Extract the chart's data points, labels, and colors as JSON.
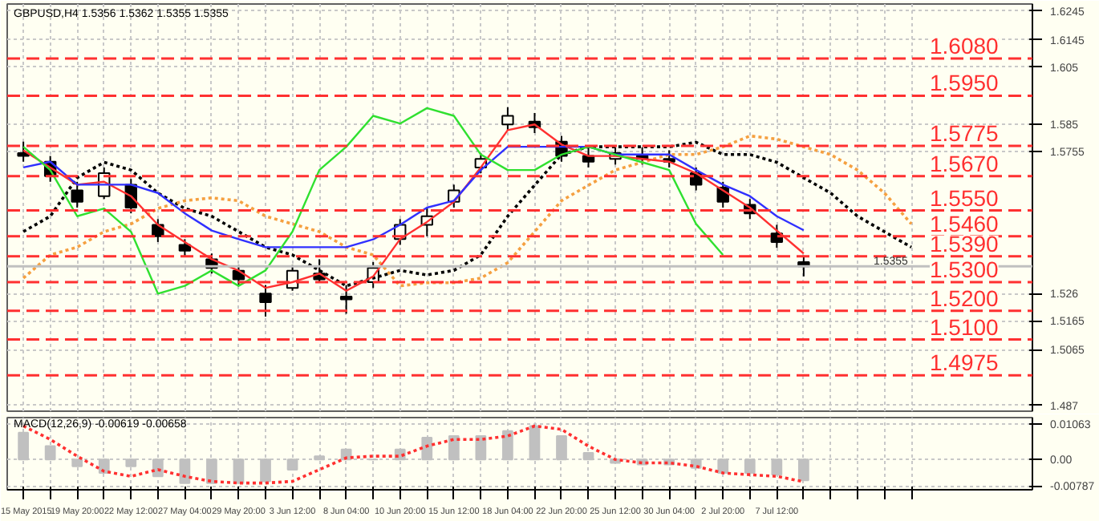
{
  "chart_data": [
    {
      "type": "candlestick",
      "title": "GBPUSD,H4  1.5356 1.5362 1.5355 1.5355",
      "color": "#000000",
      "categories": [
        null,
        null,
        null,
        null,
        null,
        null,
        null,
        null,
        null,
        null,
        null,
        null,
        null,
        null,
        null,
        null,
        null,
        null,
        null,
        null,
        null,
        null,
        null,
        null,
        null,
        null,
        null,
        null,
        null,
        null,
        null,
        null,
        null,
        null
      ],
      "ohlc": [
        [
          1.575,
          1.579,
          1.572,
          1.574
        ],
        [
          1.572,
          1.574,
          1.565,
          1.567
        ],
        [
          1.562,
          1.565,
          1.556,
          1.558
        ],
        [
          1.56,
          1.57,
          1.559,
          1.568
        ],
        [
          1.564,
          1.566,
          1.554,
          1.556
        ],
        [
          1.55,
          1.552,
          1.544,
          1.546
        ],
        [
          1.543,
          1.545,
          1.539,
          1.541
        ],
        [
          1.538,
          1.54,
          1.533,
          1.535
        ],
        [
          1.534,
          1.536,
          1.529,
          1.531
        ],
        [
          1.526,
          1.529,
          1.518,
          1.523
        ],
        [
          1.528,
          1.536,
          1.527,
          1.534
        ],
        [
          1.533,
          1.538,
          1.53,
          1.531
        ],
        [
          1.525,
          1.529,
          1.519,
          1.524
        ],
        [
          1.53,
          1.537,
          1.528,
          1.535
        ],
        [
          1.545,
          1.552,
          1.543,
          1.55
        ],
        [
          1.55,
          1.556,
          1.546,
          1.553
        ],
        [
          1.558,
          1.564,
          1.556,
          1.562
        ],
        [
          1.57,
          1.575,
          1.568,
          1.573
        ],
        [
          1.585,
          1.591,
          1.583,
          1.588
        ],
        [
          1.586,
          1.589,
          1.582,
          1.584
        ],
        [
          1.579,
          1.581,
          1.572,
          1.574
        ],
        [
          1.574,
          1.577,
          1.57,
          1.572
        ],
        [
          1.573,
          1.577,
          1.571,
          1.575
        ],
        [
          1.574,
          1.577,
          1.571,
          1.573
        ],
        [
          1.573,
          1.576,
          1.57,
          1.572
        ],
        [
          1.568,
          1.57,
          1.562,
          1.564
        ],
        [
          1.563,
          1.565,
          1.556,
          1.558
        ],
        [
          1.557,
          1.559,
          1.552,
          1.554
        ],
        [
          1.547,
          1.55,
          1.542,
          1.544
        ],
        [
          1.537,
          1.539,
          1.532,
          1.5355
        ],
        null,
        null,
        null,
        null
      ],
      "series": [
        {
          "type": "line",
          "color": "#000000",
          "line_style": "dotted",
          "values": [
            1.5476,
            1.553,
            1.5664,
            1.5718,
            1.5691,
            1.5611,
            1.5557,
            1.553,
            1.5476,
            1.5422,
            1.5395,
            1.5341,
            1.5287,
            1.5314,
            1.5341,
            1.5325,
            1.5341,
            1.5395,
            1.553,
            1.5638,
            1.5745,
            1.5772,
            1.5772,
            1.5772,
            1.5772,
            1.5788,
            1.5745,
            1.5745,
            1.5718,
            1.5664,
            1.5611,
            1.553,
            1.5476,
            1.5422
          ]
        },
        {
          "type": "line",
          "color": "#f5a040",
          "line_style": "dotted",
          "values": [
            1.5314,
            1.5395,
            1.5422,
            1.5476,
            1.5503,
            1.5557,
            1.5584,
            1.5594,
            1.5584,
            1.553,
            1.5503,
            1.5476,
            1.5422,
            1.5395,
            1.5287,
            1.5298,
            1.5298,
            1.5314,
            1.5368,
            1.5476,
            1.5584,
            1.5638,
            1.5691,
            1.5718,
            1.5745,
            1.5745,
            1.5772,
            1.581,
            1.5799,
            1.5772,
            1.5745,
            1.5691,
            1.5611,
            1.5503
          ]
        },
        {
          "type": "line",
          "color": "#ff3030",
          "values": [
            1.576,
            1.57,
            1.564,
            1.565,
            1.56,
            1.55,
            1.544,
            1.538,
            1.534,
            1.528,
            1.53,
            1.533,
            1.527,
            1.532,
            1.545,
            1.551,
            1.558,
            1.57,
            1.583,
            1.585,
            1.578,
            1.574,
            1.574,
            1.573,
            1.572,
            1.568,
            1.562,
            1.556,
            1.548,
            1.54,
            null,
            null,
            null,
            null
          ]
        },
        {
          "type": "line",
          "color": "#3030ff",
          "values": [
            1.57,
            1.572,
            1.564,
            1.564,
            1.564,
            1.5611,
            1.554,
            1.548,
            1.545,
            1.5422,
            1.5422,
            1.5422,
            1.5422,
            1.5449,
            1.55,
            1.556,
            1.5584,
            1.5691,
            1.5772,
            1.5772,
            1.5772,
            1.5772,
            1.5745,
            1.5745,
            1.5745,
            1.5691,
            1.564,
            1.56,
            1.553,
            1.5481,
            null,
            null,
            null,
            null
          ]
        },
        {
          "type": "line",
          "color": "#30e030",
          "values": [
            1.5772,
            1.5691,
            1.553,
            1.5557,
            1.5476,
            1.526,
            1.5287,
            1.5341,
            1.5287,
            1.5341,
            1.5476,
            1.5691,
            1.5772,
            1.588,
            1.5853,
            1.5907,
            1.588,
            1.5745,
            1.5691,
            1.5691,
            1.5745,
            1.5772,
            1.5745,
            1.5718,
            1.5691,
            1.5503,
            1.5395,
            null,
            null,
            null,
            null,
            null,
            null,
            null
          ]
        }
      ],
      "ylim": [
        1.485,
        1.627
      ],
      "yticks": [
        1.6245,
        1.6145,
        1.605,
        1.585,
        1.5755,
        1.526,
        1.5165,
        1.5065,
        1.487
      ],
      "tick_labels": "y",
      "grid": true,
      "ref_lines": [
        {
          "axis": "y",
          "value": 1.608,
          "label": "1.6080",
          "color": "#ff3030",
          "line_style": "dashed"
        },
        {
          "axis": "y",
          "value": 1.595,
          "label": "1.5950",
          "color": "#ff3030",
          "line_style": "dashed"
        },
        {
          "axis": "y",
          "value": 1.5775,
          "label": "1.5775",
          "color": "#ff3030",
          "line_style": "dashed"
        },
        {
          "axis": "y",
          "value": 1.567,
          "label": "1.5670",
          "color": "#ff3030",
          "line_style": "dashed"
        },
        {
          "axis": "y",
          "value": 1.555,
          "label": "1.5550",
          "color": "#ff3030",
          "line_style": "dashed"
        },
        {
          "axis": "y",
          "value": 1.546,
          "label": "1.5460",
          "color": "#ff3030",
          "line_style": "dashed"
        },
        {
          "axis": "y",
          "value": 1.539,
          "label": "1.5390",
          "color": "#ff3030",
          "line_style": "dashed"
        },
        {
          "axis": "y",
          "value": 1.53,
          "label": "1.5300",
          "color": "#ff3030",
          "line_style": "dashed"
        },
        {
          "axis": "y",
          "value": 1.52,
          "label": "1.5200",
          "color": "#ff3030",
          "line_style": "dashed"
        },
        {
          "axis": "y",
          "value": 1.51,
          "label": "1.5100",
          "color": "#ff3030",
          "line_style": "dashed"
        },
        {
          "axis": "y",
          "value": 1.4975,
          "label": "1.4975",
          "color": "#ff3030",
          "line_style": "dashed"
        },
        {
          "axis": "y",
          "value": 1.5355,
          "label": "1.5355",
          "color": "#c0c0c0",
          "line_style": "solid"
        }
      ]
    },
    {
      "type": "bar",
      "title": "MACD(12,26,9) -0.00619 -0.00658",
      "categories": [
        "15 May 2015",
        null,
        "19 May 20:00",
        null,
        "22 May 12:00",
        null,
        "27 May 04:00",
        null,
        "29 May 20:00",
        null,
        "3 Jun 12:00",
        null,
        "8 Jun 04:00",
        null,
        "10 Jun 20:00",
        null,
        "15 Jun 12:00",
        null,
        "18 Jun 04:00",
        null,
        "22 Jun 20:00",
        null,
        "25 Jun 12:00",
        null,
        "30 Jun 04:00",
        null,
        "2 Jul 20:00",
        null,
        "7 Jul 12:00",
        null,
        null,
        null,
        null,
        null
      ],
      "series": [
        {
          "type": "bar",
          "color": "#c0c0c0",
          "values": [
            0.008,
            0.004,
            -0.002,
            -0.004,
            -0.002,
            -0.005,
            -0.007,
            -0.007,
            -0.007,
            -0.0065,
            -0.003,
            0.001,
            0.003,
            0.0,
            0.003,
            0.0065,
            0.007,
            0.007,
            0.0085,
            0.01,
            0.007,
            0.002,
            -0.001,
            -0.0015,
            -0.0015,
            -0.0025,
            -0.004,
            -0.004,
            -0.0045,
            -0.0062,
            null,
            null,
            null,
            null
          ]
        },
        {
          "type": "line",
          "color": "#ff3030",
          "line_style": "dotted",
          "values": [
            0.01,
            0.006,
            0.001,
            -0.0035,
            -0.005,
            -0.003,
            -0.005,
            -0.0065,
            -0.007,
            -0.007,
            -0.0065,
            -0.003,
            0.0005,
            0.001,
            0.001,
            0.004,
            0.006,
            0.006,
            0.007,
            0.01,
            0.009,
            0.004,
            0.0,
            -0.001,
            -0.001,
            -0.002,
            -0.004,
            -0.0045,
            -0.005,
            -0.0066,
            null,
            null,
            null,
            null
          ]
        }
      ],
      "ylim": [
        -0.009,
        0.0125
      ],
      "yticks": [
        {
          "value": 0.01063,
          "label": "0.01063"
        },
        {
          "value": 0,
          "label": "0.00"
        },
        {
          "value": -0.00787,
          "label": "-0.00787"
        }
      ],
      "grid": true
    }
  ]
}
